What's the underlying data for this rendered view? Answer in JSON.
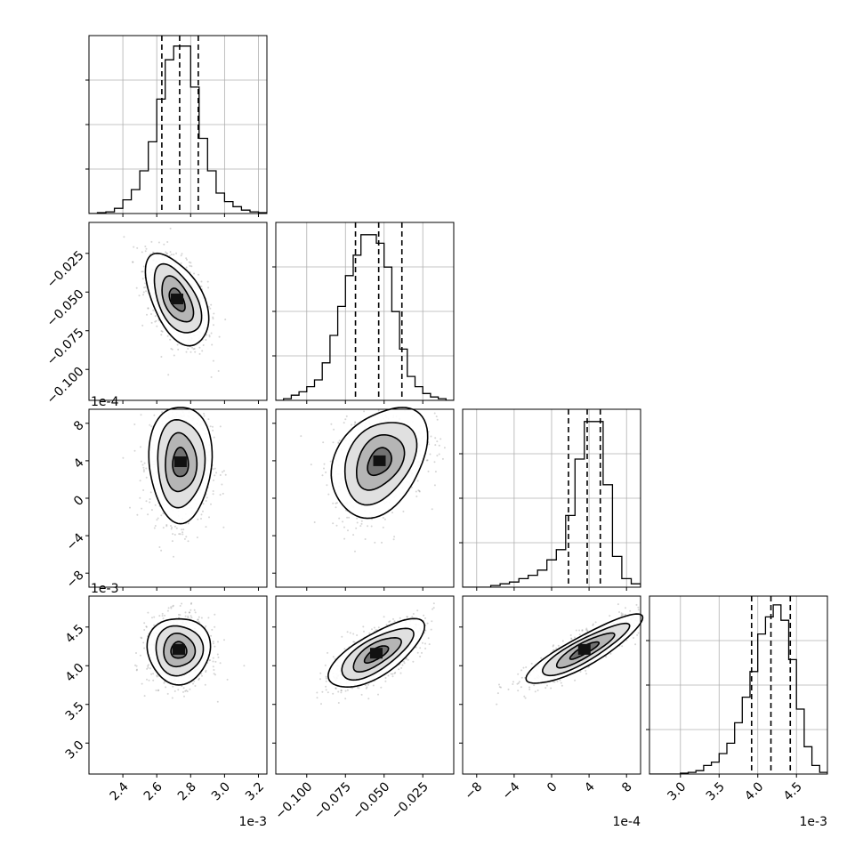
{
  "chart_data": {
    "type": "corner",
    "parameters": [
      {
        "id": "p1",
        "offset_label": "1e-3",
        "range": [
          2.2,
          3.25
        ],
        "ticks": [
          2.4,
          2.6,
          2.8,
          3.0,
          3.2
        ],
        "tick_labels": [
          "2.4",
          "2.6",
          "2.8",
          "3.0",
          "3.2"
        ],
        "quantiles": [
          2.63,
          2.735,
          2.845
        ],
        "hist_bins": [
          2.2,
          2.25,
          2.3,
          2.35,
          2.4,
          2.45,
          2.5,
          2.55,
          2.6,
          2.65,
          2.7,
          2.75,
          2.8,
          2.85,
          2.9,
          2.95,
          3.0,
          3.05,
          3.1,
          3.15,
          3.2,
          3.25
        ],
        "hist_counts": [
          0,
          0.005,
          0.01,
          0.03,
          0.08,
          0.14,
          0.25,
          0.42,
          0.67,
          0.9,
          0.98,
          0.98,
          0.74,
          0.44,
          0.25,
          0.12,
          0.07,
          0.04,
          0.02,
          0.01,
          0.005
        ]
      },
      {
        "id": "p2",
        "offset_label": "",
        "range": [
          -0.12,
          -0.005
        ],
        "ticks": [
          -0.1,
          -0.075,
          -0.05,
          -0.025
        ],
        "tick_labels": [
          "−0.100",
          "−0.075",
          "−0.050",
          "−0.025"
        ],
        "quantiles": [
          -0.0685,
          -0.0535,
          -0.0385
        ],
        "hist_bins": [
          -0.12,
          -0.115,
          -0.11,
          -0.105,
          -0.1,
          -0.095,
          -0.09,
          -0.085,
          -0.08,
          -0.075,
          -0.07,
          -0.065,
          -0.06,
          -0.055,
          -0.05,
          -0.045,
          -0.04,
          -0.035,
          -0.03,
          -0.025,
          -0.02,
          -0.015,
          -0.01,
          -0.005
        ],
        "hist_counts": [
          0,
          0.01,
          0.03,
          0.05,
          0.08,
          0.12,
          0.22,
          0.38,
          0.55,
          0.73,
          0.85,
          0.97,
          0.97,
          0.92,
          0.78,
          0.52,
          0.3,
          0.14,
          0.08,
          0.04,
          0.02,
          0.01,
          0
        ]
      },
      {
        "id": "p3",
        "offset_label": "1e-4",
        "range": [
          -9.5,
          9.5
        ],
        "ticks": [
          -8,
          -4,
          0,
          4,
          8
        ],
        "tick_labels": [
          "−8",
          "−4",
          "0",
          "4",
          "8"
        ],
        "quantiles": [
          1.8,
          3.8,
          5.2
        ],
        "hist_bins": [
          -9.5,
          -8.5,
          -7.5,
          -6.5,
          -5.5,
          -4.5,
          -3.5,
          -2.5,
          -1.5,
          -0.5,
          0.5,
          1.5,
          2.5,
          3.5,
          4.5,
          5.5,
          6.5,
          7.5,
          8.5,
          9.5
        ],
        "hist_counts": [
          0,
          0,
          0,
          0.01,
          0.02,
          0.03,
          0.05,
          0.07,
          0.1,
          0.16,
          0.22,
          0.42,
          0.75,
          0.97,
          0.97,
          0.6,
          0.18,
          0.05,
          0.02
        ]
      },
      {
        "id": "p4",
        "offset_label": "1e-3",
        "range": [
          2.6,
          4.9
        ],
        "ticks": [
          3.0,
          3.5,
          4.0,
          4.5
        ],
        "tick_labels": [
          "3.0",
          "3.5",
          "4.0",
          "4.5"
        ],
        "quantiles": [
          3.92,
          4.17,
          4.42
        ],
        "hist_bins": [
          2.6,
          2.7,
          2.8,
          2.9,
          3.0,
          3.1,
          3.2,
          3.3,
          3.4,
          3.5,
          3.6,
          3.7,
          3.8,
          3.9,
          4.0,
          4.1,
          4.2,
          4.3,
          4.4,
          4.5,
          4.6,
          4.7,
          4.8,
          4.9
        ],
        "hist_counts": [
          0,
          0,
          0,
          0,
          0.005,
          0.01,
          0.02,
          0.05,
          0.07,
          0.12,
          0.18,
          0.3,
          0.45,
          0.6,
          0.82,
          0.92,
          0.99,
          0.9,
          0.67,
          0.38,
          0.16,
          0.05,
          0.01
        ]
      }
    ],
    "pairs": [
      {
        "row": 1,
        "col": 0,
        "mean": [
          2.72,
          -0.055
        ],
        "cov": [
          [
            0.0081,
            -0.00066
          ],
          [
            -0.00066,
            0.000225
          ]
        ]
      },
      {
        "row": 2,
        "col": 0,
        "mean": [
          2.74,
          3.8
        ],
        "cov": [
          [
            0.0081,
            0
          ],
          [
            0,
            10.24
          ]
        ]
      },
      {
        "row": 2,
        "col": 1,
        "mean": [
          -0.053,
          3.9
        ],
        "cov": [
          [
            0.000225,
            0.0144
          ],
          [
            0.0144,
            9.0
          ]
        ]
      },
      {
        "row": 3,
        "col": 0,
        "mean": [
          2.73,
          4.2
        ],
        "cov": [
          [
            0.0081,
            0
          ],
          [
            0,
            0.0484
          ]
        ]
      },
      {
        "row": 3,
        "col": 1,
        "mean": [
          -0.055,
          4.15
        ],
        "cov": [
          [
            0.000225,
            0.0023
          ],
          [
            0.0023,
            0.0484
          ]
        ]
      },
      {
        "row": 3,
        "col": 2,
        "mean": [
          3.5,
          4.2
        ],
        "cov": [
          [
            9.0,
            0.57
          ],
          [
            0.57,
            0.0484
          ]
        ]
      }
    ],
    "contour_levels_sigma": [
      0.5,
      1.0,
      1.5,
      2.0
    ],
    "grid": true
  }
}
